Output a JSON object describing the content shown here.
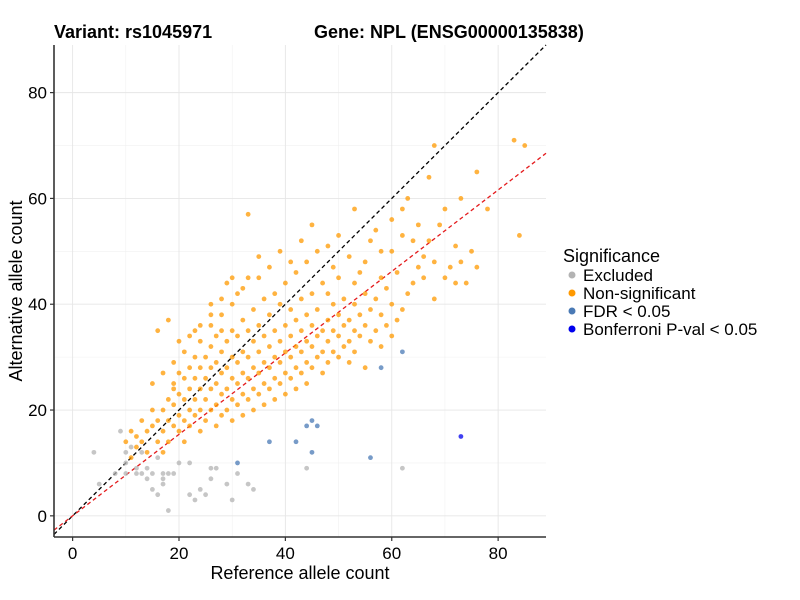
{
  "chart_data": {
    "type": "scatter",
    "title_variant": "Variant: rs1045971",
    "title_gene": "Gene: NPL (ENSG00000135838)",
    "xlabel": "Reference allele count",
    "ylabel": "Alternative allele count",
    "xlim": [
      -3.5,
      89
    ],
    "ylim": [
      -4,
      89
    ],
    "xticks": [
      0,
      20,
      40,
      60,
      80
    ],
    "yticks": [
      0,
      20,
      40,
      60,
      80
    ],
    "grid": true,
    "legend": {
      "title": "Significance",
      "position": "right",
      "items": [
        {
          "label": "Excluded",
          "color": "#b3b3b3"
        },
        {
          "label": "Non-significant",
          "color": "#ff9900"
        },
        {
          "label": "FDR < 0.05",
          "color": "#4a7ab5"
        },
        {
          "label": "Bonferroni P-val < 0.05",
          "color": "#0000ee"
        }
      ]
    },
    "reference_lines": [
      {
        "kind": "identity",
        "slope": 1.0,
        "intercept": 0,
        "color": "#000000",
        "style": "dashed"
      },
      {
        "kind": "fitted",
        "slope": 0.77,
        "intercept": 0,
        "color": "#e41a1c",
        "style": "dashed"
      }
    ],
    "series": [
      {
        "name": "Excluded",
        "color": "#b3b3b3",
        "points": [
          [
            4,
            12
          ],
          [
            5,
            6
          ],
          [
            9,
            16
          ],
          [
            10,
            12
          ],
          [
            10,
            10
          ],
          [
            10,
            8
          ],
          [
            11,
            13
          ],
          [
            12,
            9
          ],
          [
            12,
            8
          ],
          [
            13,
            8
          ],
          [
            14,
            7
          ],
          [
            14,
            9
          ],
          [
            15,
            8
          ],
          [
            15,
            5
          ],
          [
            16,
            4
          ],
          [
            17,
            7
          ],
          [
            17,
            8
          ],
          [
            18,
            8
          ],
          [
            17,
            6
          ],
          [
            18,
            1
          ],
          [
            19,
            8
          ],
          [
            22,
            10
          ],
          [
            22,
            4
          ],
          [
            23,
            3
          ],
          [
            24,
            5
          ],
          [
            25,
            4
          ],
          [
            26,
            7
          ],
          [
            26,
            9
          ],
          [
            27,
            9
          ],
          [
            29,
            6
          ],
          [
            30,
            3
          ],
          [
            31,
            8
          ],
          [
            33,
            6
          ],
          [
            34,
            5
          ],
          [
            44,
            9
          ],
          [
            62,
            9
          ],
          [
            8,
            8
          ],
          [
            13,
            12
          ],
          [
            16,
            11
          ],
          [
            20,
            10
          ]
        ]
      },
      {
        "name": "Non-significant",
        "color": "#ff9900",
        "points": [
          [
            10,
            14
          ],
          [
            11,
            16
          ],
          [
            12,
            13
          ],
          [
            12,
            15
          ],
          [
            13,
            14
          ],
          [
            14,
            12
          ],
          [
            14,
            16
          ],
          [
            15,
            17
          ],
          [
            15,
            20
          ],
          [
            16,
            14
          ],
          [
            16,
            18
          ],
          [
            17,
            12
          ],
          [
            17,
            16
          ],
          [
            17,
            20
          ],
          [
            18,
            14
          ],
          [
            18,
            18
          ],
          [
            18,
            22
          ],
          [
            19,
            17
          ],
          [
            19,
            21
          ],
          [
            19,
            25
          ],
          [
            20,
            16
          ],
          [
            20,
            19
          ],
          [
            20,
            23
          ],
          [
            20,
            27
          ],
          [
            21,
            14
          ],
          [
            21,
            18
          ],
          [
            21,
            22
          ],
          [
            21,
            26
          ],
          [
            22,
            17
          ],
          [
            22,
            20
          ],
          [
            22,
            24
          ],
          [
            22,
            28
          ],
          [
            23,
            19
          ],
          [
            23,
            22
          ],
          [
            23,
            26
          ],
          [
            23,
            30
          ],
          [
            24,
            16
          ],
          [
            24,
            20
          ],
          [
            24,
            24
          ],
          [
            24,
            28
          ],
          [
            24,
            33
          ],
          [
            25,
            18
          ],
          [
            25,
            22
          ],
          [
            25,
            26
          ],
          [
            25,
            30
          ],
          [
            26,
            20
          ],
          [
            26,
            24
          ],
          [
            26,
            28
          ],
          [
            26,
            32
          ],
          [
            26,
            36
          ],
          [
            27,
            17
          ],
          [
            27,
            21
          ],
          [
            27,
            25
          ],
          [
            27,
            29
          ],
          [
            27,
            34
          ],
          [
            28,
            19
          ],
          [
            28,
            23
          ],
          [
            28,
            27
          ],
          [
            28,
            31
          ],
          [
            28,
            38
          ],
          [
            29,
            20
          ],
          [
            29,
            24
          ],
          [
            29,
            28
          ],
          [
            29,
            33
          ],
          [
            30,
            18
          ],
          [
            30,
            22
          ],
          [
            30,
            26
          ],
          [
            30,
            30
          ],
          [
            30,
            35
          ],
          [
            30,
            40
          ],
          [
            31,
            21
          ],
          [
            31,
            25
          ],
          [
            31,
            29
          ],
          [
            31,
            34
          ],
          [
            32,
            19
          ],
          [
            32,
            23
          ],
          [
            32,
            27
          ],
          [
            32,
            31
          ],
          [
            32,
            37
          ],
          [
            32,
            43
          ],
          [
            33,
            22
          ],
          [
            33,
            26
          ],
          [
            33,
            30
          ],
          [
            33,
            35
          ],
          [
            34,
            20
          ],
          [
            34,
            24
          ],
          [
            34,
            28
          ],
          [
            34,
            33
          ],
          [
            34,
            39
          ],
          [
            35,
            23
          ],
          [
            35,
            27
          ],
          [
            35,
            31
          ],
          [
            35,
            36
          ],
          [
            35,
            45
          ],
          [
            36,
            21
          ],
          [
            36,
            25
          ],
          [
            36,
            29
          ],
          [
            36,
            34
          ],
          [
            36,
            41
          ],
          [
            37,
            24
          ],
          [
            37,
            28
          ],
          [
            37,
            32
          ],
          [
            37,
            38
          ],
          [
            38,
            22
          ],
          [
            38,
            26
          ],
          [
            38,
            30
          ],
          [
            38,
            35
          ],
          [
            38,
            42
          ],
          [
            39,
            25
          ],
          [
            39,
            29
          ],
          [
            39,
            33
          ],
          [
            39,
            40
          ],
          [
            40,
            23
          ],
          [
            40,
            27
          ],
          [
            40,
            31
          ],
          [
            40,
            36
          ],
          [
            40,
            44
          ],
          [
            41,
            26
          ],
          [
            41,
            30
          ],
          [
            41,
            34
          ],
          [
            41,
            39
          ],
          [
            42,
            24
          ],
          [
            42,
            28
          ],
          [
            42,
            32
          ],
          [
            42,
            37
          ],
          [
            42,
            46
          ],
          [
            43,
            27
          ],
          [
            43,
            31
          ],
          [
            43,
            35
          ],
          [
            43,
            41
          ],
          [
            44,
            25
          ],
          [
            44,
            29
          ],
          [
            44,
            33
          ],
          [
            44,
            38
          ],
          [
            44,
            48
          ],
          [
            45,
            28
          ],
          [
            45,
            32
          ],
          [
            45,
            36
          ],
          [
            45,
            42
          ],
          [
            46,
            30
          ],
          [
            46,
            34
          ],
          [
            46,
            39
          ],
          [
            46,
            50
          ],
          [
            47,
            27
          ],
          [
            47,
            31
          ],
          [
            47,
            35
          ],
          [
            47,
            44
          ],
          [
            48,
            29
          ],
          [
            48,
            33
          ],
          [
            48,
            37
          ],
          [
            48,
            42
          ],
          [
            49,
            31
          ],
          [
            49,
            35
          ],
          [
            49,
            40
          ],
          [
            49,
            47
          ],
          [
            50,
            30
          ],
          [
            50,
            34
          ],
          [
            50,
            38
          ],
          [
            50,
            45
          ],
          [
            51,
            32
          ],
          [
            51,
            36
          ],
          [
            51,
            41
          ],
          [
            52,
            29
          ],
          [
            52,
            33
          ],
          [
            52,
            37
          ],
          [
            52,
            49
          ],
          [
            53,
            31
          ],
          [
            53,
            35
          ],
          [
            53,
            40
          ],
          [
            53,
            44
          ],
          [
            54,
            34
          ],
          [
            54,
            38
          ],
          [
            54,
            46
          ],
          [
            55,
            28
          ],
          [
            55,
            36
          ],
          [
            55,
            42
          ],
          [
            56,
            33
          ],
          [
            56,
            39
          ],
          [
            56,
            52
          ],
          [
            57,
            35
          ],
          [
            57,
            41
          ],
          [
            58,
            32
          ],
          [
            58,
            38
          ],
          [
            58,
            45
          ],
          [
            59,
            36
          ],
          [
            59,
            43
          ],
          [
            60,
            34
          ],
          [
            60,
            40
          ],
          [
            60,
            50
          ],
          [
            61,
            37
          ],
          [
            61,
            46
          ],
          [
            62,
            39
          ],
          [
            62,
            53
          ],
          [
            63,
            42
          ],
          [
            64,
            44
          ],
          [
            65,
            47
          ],
          [
            66,
            49
          ],
          [
            67,
            52
          ],
          [
            68,
            41
          ],
          [
            69,
            55
          ],
          [
            70,
            45
          ],
          [
            72,
            44
          ],
          [
            73,
            48
          ],
          [
            74,
            44
          ],
          [
            76,
            47
          ],
          [
            78,
            58
          ],
          [
            68,
            70
          ],
          [
            83,
            71
          ],
          [
            84,
            53
          ],
          [
            85,
            70
          ],
          [
            33,
            57
          ],
          [
            16,
            35
          ],
          [
            18,
            37
          ],
          [
            19,
            29
          ],
          [
            20,
            33
          ],
          [
            22,
            34
          ],
          [
            24,
            36
          ],
          [
            26,
            38
          ],
          [
            28,
            35
          ],
          [
            29,
            44
          ],
          [
            31,
            42
          ],
          [
            33,
            45
          ],
          [
            35,
            49
          ],
          [
            37,
            47
          ],
          [
            39,
            50
          ],
          [
            41,
            48
          ],
          [
            43,
            52
          ],
          [
            45,
            55
          ],
          [
            48,
            51
          ],
          [
            50,
            53
          ],
          [
            63,
            60
          ],
          [
            65,
            55
          ],
          [
            67,
            64
          ],
          [
            70,
            58
          ],
          [
            72,
            51
          ],
          [
            75,
            50
          ],
          [
            66,
            45
          ],
          [
            68,
            48
          ],
          [
            62,
            58
          ],
          [
            60,
            56
          ],
          [
            57,
            54
          ],
          [
            55,
            48
          ],
          [
            53,
            58
          ],
          [
            58,
            50
          ],
          [
            64,
            52
          ],
          [
            71,
            47
          ],
          [
            73,
            60
          ],
          [
            76,
            65
          ],
          [
            30,
            45
          ],
          [
            28,
            41
          ],
          [
            26,
            40
          ],
          [
            23,
            35
          ],
          [
            21,
            31
          ],
          [
            19,
            24
          ],
          [
            17,
            27
          ],
          [
            15,
            25
          ],
          [
            13,
            18
          ],
          [
            11,
            11
          ]
        ]
      },
      {
        "name": "FDR < 0.05",
        "color": "#4a7ab5",
        "points": [
          [
            31,
            10
          ],
          [
            37,
            14
          ],
          [
            42,
            14
          ],
          [
            44,
            17
          ],
          [
            45,
            12
          ],
          [
            45,
            18
          ],
          [
            46,
            17
          ],
          [
            56,
            11
          ],
          [
            58,
            28
          ],
          [
            62,
            31
          ]
        ]
      },
      {
        "name": "Bonferroni P-val < 0.05",
        "color": "#0000ee",
        "points": [
          [
            73,
            15
          ]
        ]
      }
    ]
  }
}
